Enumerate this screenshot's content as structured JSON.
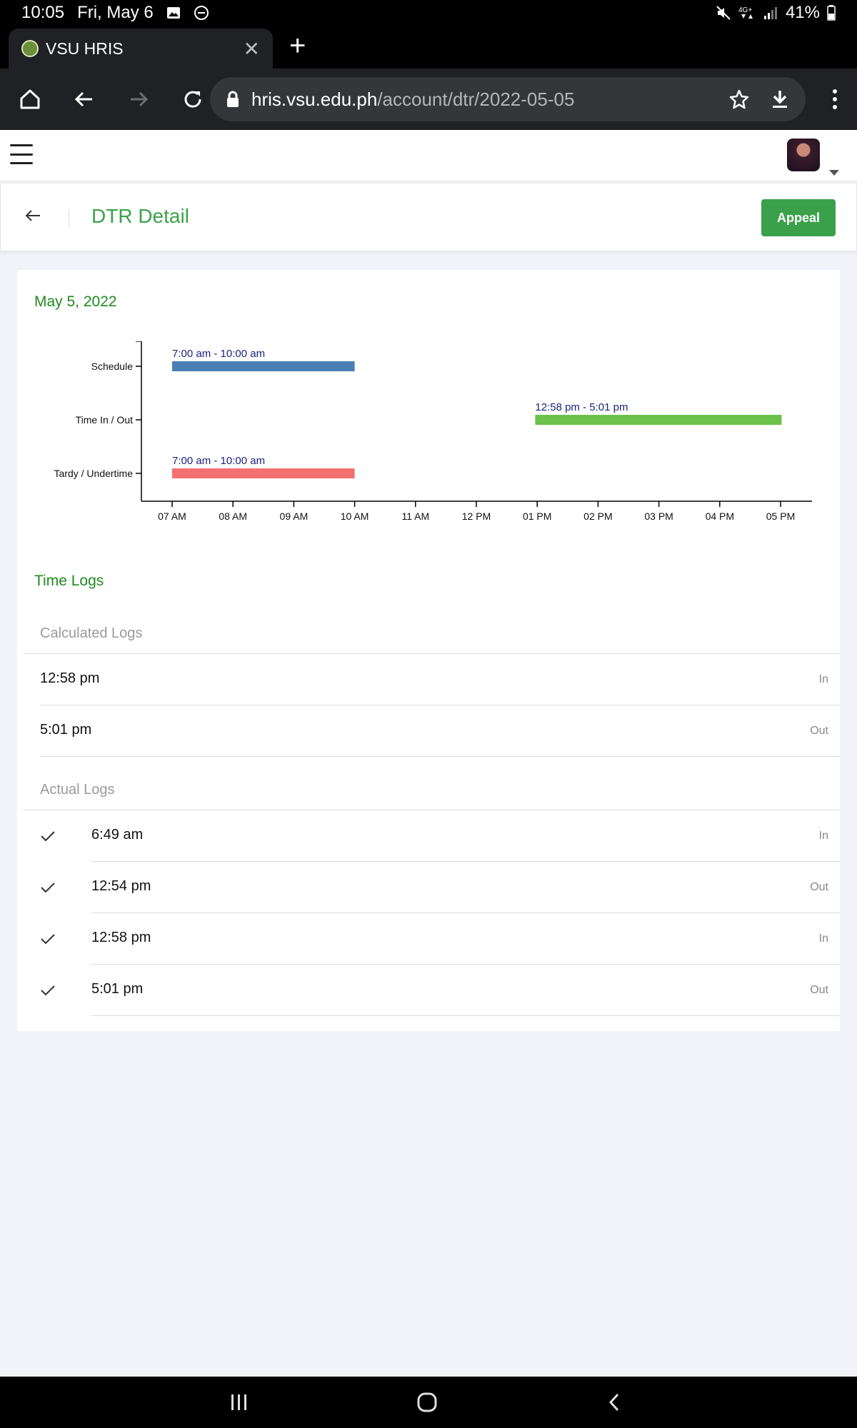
{
  "status_bar": {
    "time": "10:05",
    "date": "Fri, May 6",
    "battery": "41%"
  },
  "browser": {
    "tab_title": "VSU HRIS",
    "url_host": "hris.vsu.edu.ph",
    "url_path": "/account/dtr/2022-05-05"
  },
  "header": {
    "title": "DTR Detail",
    "appeal_label": "Appeal"
  },
  "card": {
    "date": "May 5, 2022"
  },
  "chart_data": {
    "type": "bar",
    "orientation": "horizontal-timeline",
    "categories": [
      "Schedule",
      "Time In / Out",
      "Tardy / Undertime"
    ],
    "x_ticks": [
      "07 AM",
      "08 AM",
      "09 AM",
      "10 AM",
      "11 AM",
      "12 PM",
      "01 PM",
      "02 PM",
      "03 PM",
      "04 PM",
      "05 PM"
    ],
    "xlim": [
      6.5,
      17.5
    ],
    "bars": [
      {
        "category": "Schedule",
        "start": 7.0,
        "end": 10.0,
        "label": "7:00 am - 10:00 am",
        "color": "#4a7fb5"
      },
      {
        "category": "Time In / Out",
        "start": 12.967,
        "end": 17.017,
        "label": "12:58 pm - 5:01 pm",
        "color": "#6cc24a"
      },
      {
        "category": "Tardy / Undertime",
        "start": 7.0,
        "end": 10.0,
        "label": "7:00 am - 10:00 am",
        "color": "#f47070"
      }
    ]
  },
  "time_logs": {
    "title": "Time Logs",
    "calculated_label": "Calculated Logs",
    "calculated": [
      {
        "time": "12:58 pm",
        "type": "In"
      },
      {
        "time": "5:01 pm",
        "type": "Out"
      }
    ],
    "actual_label": "Actual Logs",
    "actual": [
      {
        "time": "6:49 am",
        "type": "In"
      },
      {
        "time": "12:54 pm",
        "type": "Out"
      },
      {
        "time": "12:58 pm",
        "type": "In"
      },
      {
        "time": "5:01 pm",
        "type": "Out"
      }
    ]
  }
}
